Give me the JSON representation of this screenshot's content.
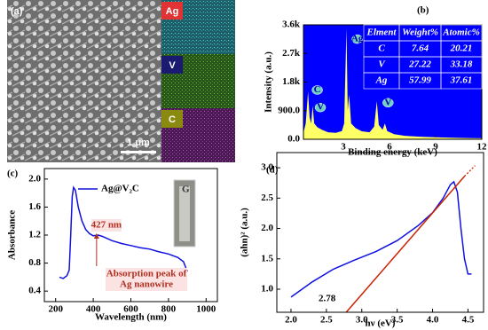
{
  "panel_a": {
    "label": "(a)",
    "maps": [
      "Ag",
      "V",
      "C"
    ],
    "scale_bar": "1 μm"
  },
  "chart_data": [
    {
      "type": "area",
      "panel_label": "(b)",
      "xlabel": "Binding energy (keV)",
      "ylabel": "Intensity (a.u.)",
      "xlim": [
        0.4,
        12
      ],
      "ylim": [
        0,
        3600
      ],
      "xticks": [
        3,
        6,
        9,
        12
      ],
      "yticks": [
        {
          "value": 0,
          "label": "0.0"
        },
        {
          "value": 900,
          "label": "900.0"
        },
        {
          "value": 1800,
          "label": "1.8k"
        },
        {
          "value": 2700,
          "label": "2.7k"
        },
        {
          "value": 3600,
          "label": "3.6k"
        }
      ],
      "background": "#0000ff",
      "series": [
        {
          "color": "#ffff66",
          "x": [
            0.4,
            0.55,
            0.7,
            0.8,
            0.9,
            1.0,
            1.1,
            1.3,
            1.6,
            2.0,
            2.5,
            2.9,
            3.05,
            3.2,
            3.28,
            3.37,
            3.5,
            3.8,
            4.2,
            4.7,
            5.0,
            5.17,
            5.3,
            5.55,
            5.7,
            5.85,
            6.3,
            7,
            8,
            9,
            10,
            11,
            12
          ],
          "values": [
            200,
            500,
            1500,
            700,
            500,
            1050,
            500,
            380,
            300,
            220,
            200,
            260,
            500,
            3500,
            900,
            1400,
            500,
            350,
            250,
            220,
            400,
            1200,
            450,
            300,
            500,
            260,
            160,
            110,
            80,
            60,
            50,
            40,
            30
          ]
        }
      ],
      "peak_labels": [
        {
          "label": "C",
          "x": 1.3,
          "y": 1550
        },
        {
          "label": "V",
          "x": 1.5,
          "y": 1000
        },
        {
          "label": "Ag",
          "x": 3.9,
          "y": 3150
        },
        {
          "label": "V",
          "x": 5.9,
          "y": 1150
        }
      ],
      "table": {
        "header": [
          "Elment",
          "Weight%",
          "Atomic%"
        ],
        "rows": [
          [
            "C",
            7.64,
            20.21
          ],
          [
            "V",
            27.22,
            33.18
          ],
          [
            "Ag",
            57.99,
            37.61
          ]
        ]
      }
    },
    {
      "type": "line",
      "panel_label": "(c)",
      "xlabel": "Wavelength (nm)",
      "ylabel": "Absorbance",
      "xlim": [
        140,
        1060
      ],
      "ylim": [
        0.25,
        2.15
      ],
      "xticks": [
        200,
        400,
        600,
        800,
        1000
      ],
      "yticks": [
        0.4,
        0.8,
        1.2,
        1.6,
        {
          "value": 2,
          "label": "2.0"
        }
      ],
      "series": [
        {
          "name": "Ag@V₂C",
          "color": "#1010e0",
          "x": [
            220,
            240,
            260,
            272,
            280,
            288,
            295,
            305,
            320,
            340,
            360,
            380,
            400,
            427,
            450,
            500,
            550,
            600,
            650,
            700,
            750,
            800,
            850,
            880,
            900
          ],
          "values": [
            0.6,
            0.58,
            0.62,
            0.7,
            1.2,
            1.75,
            1.88,
            1.84,
            1.6,
            1.4,
            1.28,
            1.22,
            1.19,
            1.2,
            1.18,
            1.12,
            1.08,
            1.05,
            1.02,
            1.0,
            0.96,
            0.93,
            0.88,
            0.82,
            0.68
          ]
        }
      ],
      "annotations": [
        {
          "text": "427 nm",
          "x": 427
        },
        {
          "text": [
            "Absorption peak of",
            "Ag nanowire"
          ]
        }
      ],
      "inset_label": "G"
    },
    {
      "type": "line",
      "panel_label": "(d)",
      "xlabel": "hν (eV)",
      "ylabel": "(ahn)² (a.u.)",
      "xlim": [
        1.8,
        4.72
      ],
      "ylim": [
        0.62,
        3.25
      ],
      "xticks": [
        {
          "value": 2,
          "label": "2.0"
        },
        2.5,
        {
          "value": 3,
          "label": "3.0"
        },
        3.5,
        {
          "value": 4,
          "label": "4.0"
        },
        4.5
      ],
      "yticks": [
        {
          "value": 1,
          "label": "1.0"
        },
        1.5,
        {
          "value": 2,
          "label": "2.0"
        },
        2.5,
        {
          "value": 3,
          "label": "3.0"
        }
      ],
      "series": [
        {
          "color": "#1010e0",
          "x": [
            2.0,
            2.3,
            2.6,
            2.9,
            3.2,
            3.5,
            3.8,
            4.0,
            4.15,
            4.25,
            4.3,
            4.35,
            4.4,
            4.45,
            4.5,
            4.55
          ],
          "values": [
            0.87,
            1.12,
            1.33,
            1.48,
            1.62,
            1.8,
            2.05,
            2.26,
            2.5,
            2.72,
            2.77,
            2.6,
            2.0,
            1.5,
            1.25,
            1.25
          ]
        },
        {
          "color": "#cc2200",
          "dashed_end": true,
          "x": [
            2.78,
            4.45
          ],
          "values": [
            0.62,
            2.86
          ]
        }
      ],
      "bandgap": 2.78
    }
  ]
}
